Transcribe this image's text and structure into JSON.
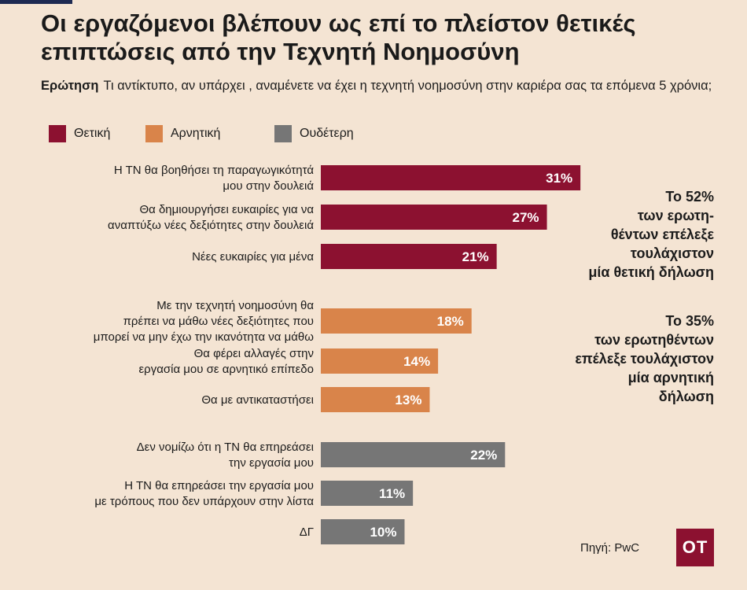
{
  "title": "Οι εργαζόμενοι βλέπουν ως επί το πλείστον θετικές επιπτώσεις από την Τεχνητή Νοημοσύνη",
  "question": {
    "label": "Ερώτηση",
    "text": "Τι αντίκτυπο, αν υπάρχει , αναμένετε να έχει η τεχνητή νοημοσύνη στην καριέρα σας τα επόμενα 5 χρόνια;"
  },
  "legend": [
    {
      "label": "Θετική",
      "color": "#8c1130"
    },
    {
      "label": "Αρνητική",
      "color": "#d9844a"
    },
    {
      "label": "Ουδέτερη",
      "color": "#767676"
    }
  ],
  "annotations": {
    "positive": [
      "Το 52%",
      "των ερωτη-",
      "θέντων επέλεξε",
      "τουλάχιστον",
      "μία θετική δήλωση"
    ],
    "negative": [
      "Το 35%",
      "των ερωτηθέντων",
      "επέλεξε τουλάχιστον",
      "μία αρνητική",
      "δήλωση"
    ]
  },
  "source": "Πηγή: PwC",
  "logo": "OT",
  "chart_data": {
    "type": "bar",
    "orientation": "horizontal",
    "unit": "%",
    "categories": [
      [
        "Η ΤΝ  θα βοηθήσει τη παραγωγικότητά",
        "μου στην δουλειά"
      ],
      [
        "Θα δημιουργήσει ευκαιρίες για να",
        "αναπτύξω νέες δεξιότητες στην δουλειά"
      ],
      [
        "Νέες ευκαιρίες για μένα"
      ],
      [
        "Με την τεχνητή νοημοσύνη  θα",
        "πρέπει να μάθω νέες δεξιότητες που",
        "μπορεί να μην έχω την ικανότητα να μάθω"
      ],
      [
        "Θα φέρει αλλαγές στην",
        "εργασία μου σε αρνητικό επίπεδο"
      ],
      [
        "Θα με αντικαταστήσει"
      ],
      [
        "Δεν νομίζω ότι η ΤΝ θα επηρεάσει",
        "την εργασία μου"
      ],
      [
        "Η ΤΝ θα επηρεάσει την εργασία μου",
        "με τρόπους που δεν υπάρχουν στην λίστα"
      ],
      [
        "ΔΓ"
      ]
    ],
    "values": [
      31,
      27,
      21,
      18,
      14,
      13,
      22,
      11,
      10
    ],
    "value_labels": [
      "31%",
      "27%",
      "21%",
      "18%",
      "14%",
      "13%",
      "22%",
      "11%",
      "10%"
    ],
    "groups": [
      "Θετική",
      "Θετική",
      "Θετική",
      "Αρνητική",
      "Αρνητική",
      "Αρνητική",
      "Ουδέτερη",
      "Ουδέτερη",
      "Ουδέτερη"
    ],
    "xlim": [
      0,
      100
    ],
    "grid": false,
    "legend_position": "top-left"
  }
}
